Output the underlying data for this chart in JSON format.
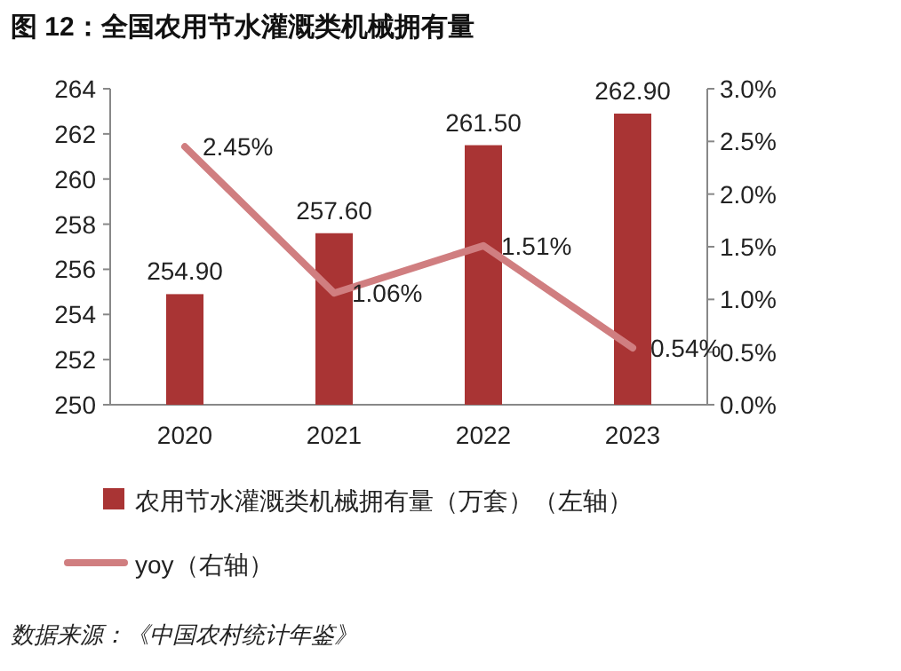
{
  "chart_data": {
    "type": "bar",
    "title": "图 12：全国农用节水灌溉类机械拥有量",
    "categories": [
      "2020",
      "2021",
      "2022",
      "2023"
    ],
    "series": [
      {
        "name": "农用节水灌溉类机械拥有量（万套）（左轴）",
        "color": "#a93434",
        "values": [
          254.9,
          257.6,
          261.5,
          262.9
        ],
        "value_labels": [
          "254.90",
          "257.60",
          "261.50",
          "262.90"
        ]
      },
      {
        "name": "yoy（右轴）",
        "type": "line",
        "axis": "y2",
        "color": "#d07e80",
        "values": [
          2.45,
          1.06,
          1.51,
          0.54
        ],
        "value_labels": [
          "2.45%",
          "1.06%",
          "1.51%",
          "0.54%"
        ]
      }
    ],
    "ylim": [
      250,
      264
    ],
    "yticks": [
      250,
      252,
      254,
      256,
      258,
      260,
      262,
      264
    ],
    "y2lim": [
      0,
      3
    ],
    "y2ticks": [
      {
        "value": 0,
        "label": "0.0%"
      },
      {
        "value": 0.5,
        "label": "0.5%"
      },
      {
        "value": 1,
        "label": "1.0%"
      },
      {
        "value": 1.5,
        "label": "1.5%"
      },
      {
        "value": 2,
        "label": "2.0%"
      },
      {
        "value": 2.5,
        "label": "2.5%"
      },
      {
        "value": 3,
        "label": "3.0%"
      }
    ],
    "legend": "bottom",
    "annotations": [
      "数据来源：《中国农村统计年鉴》"
    ]
  }
}
